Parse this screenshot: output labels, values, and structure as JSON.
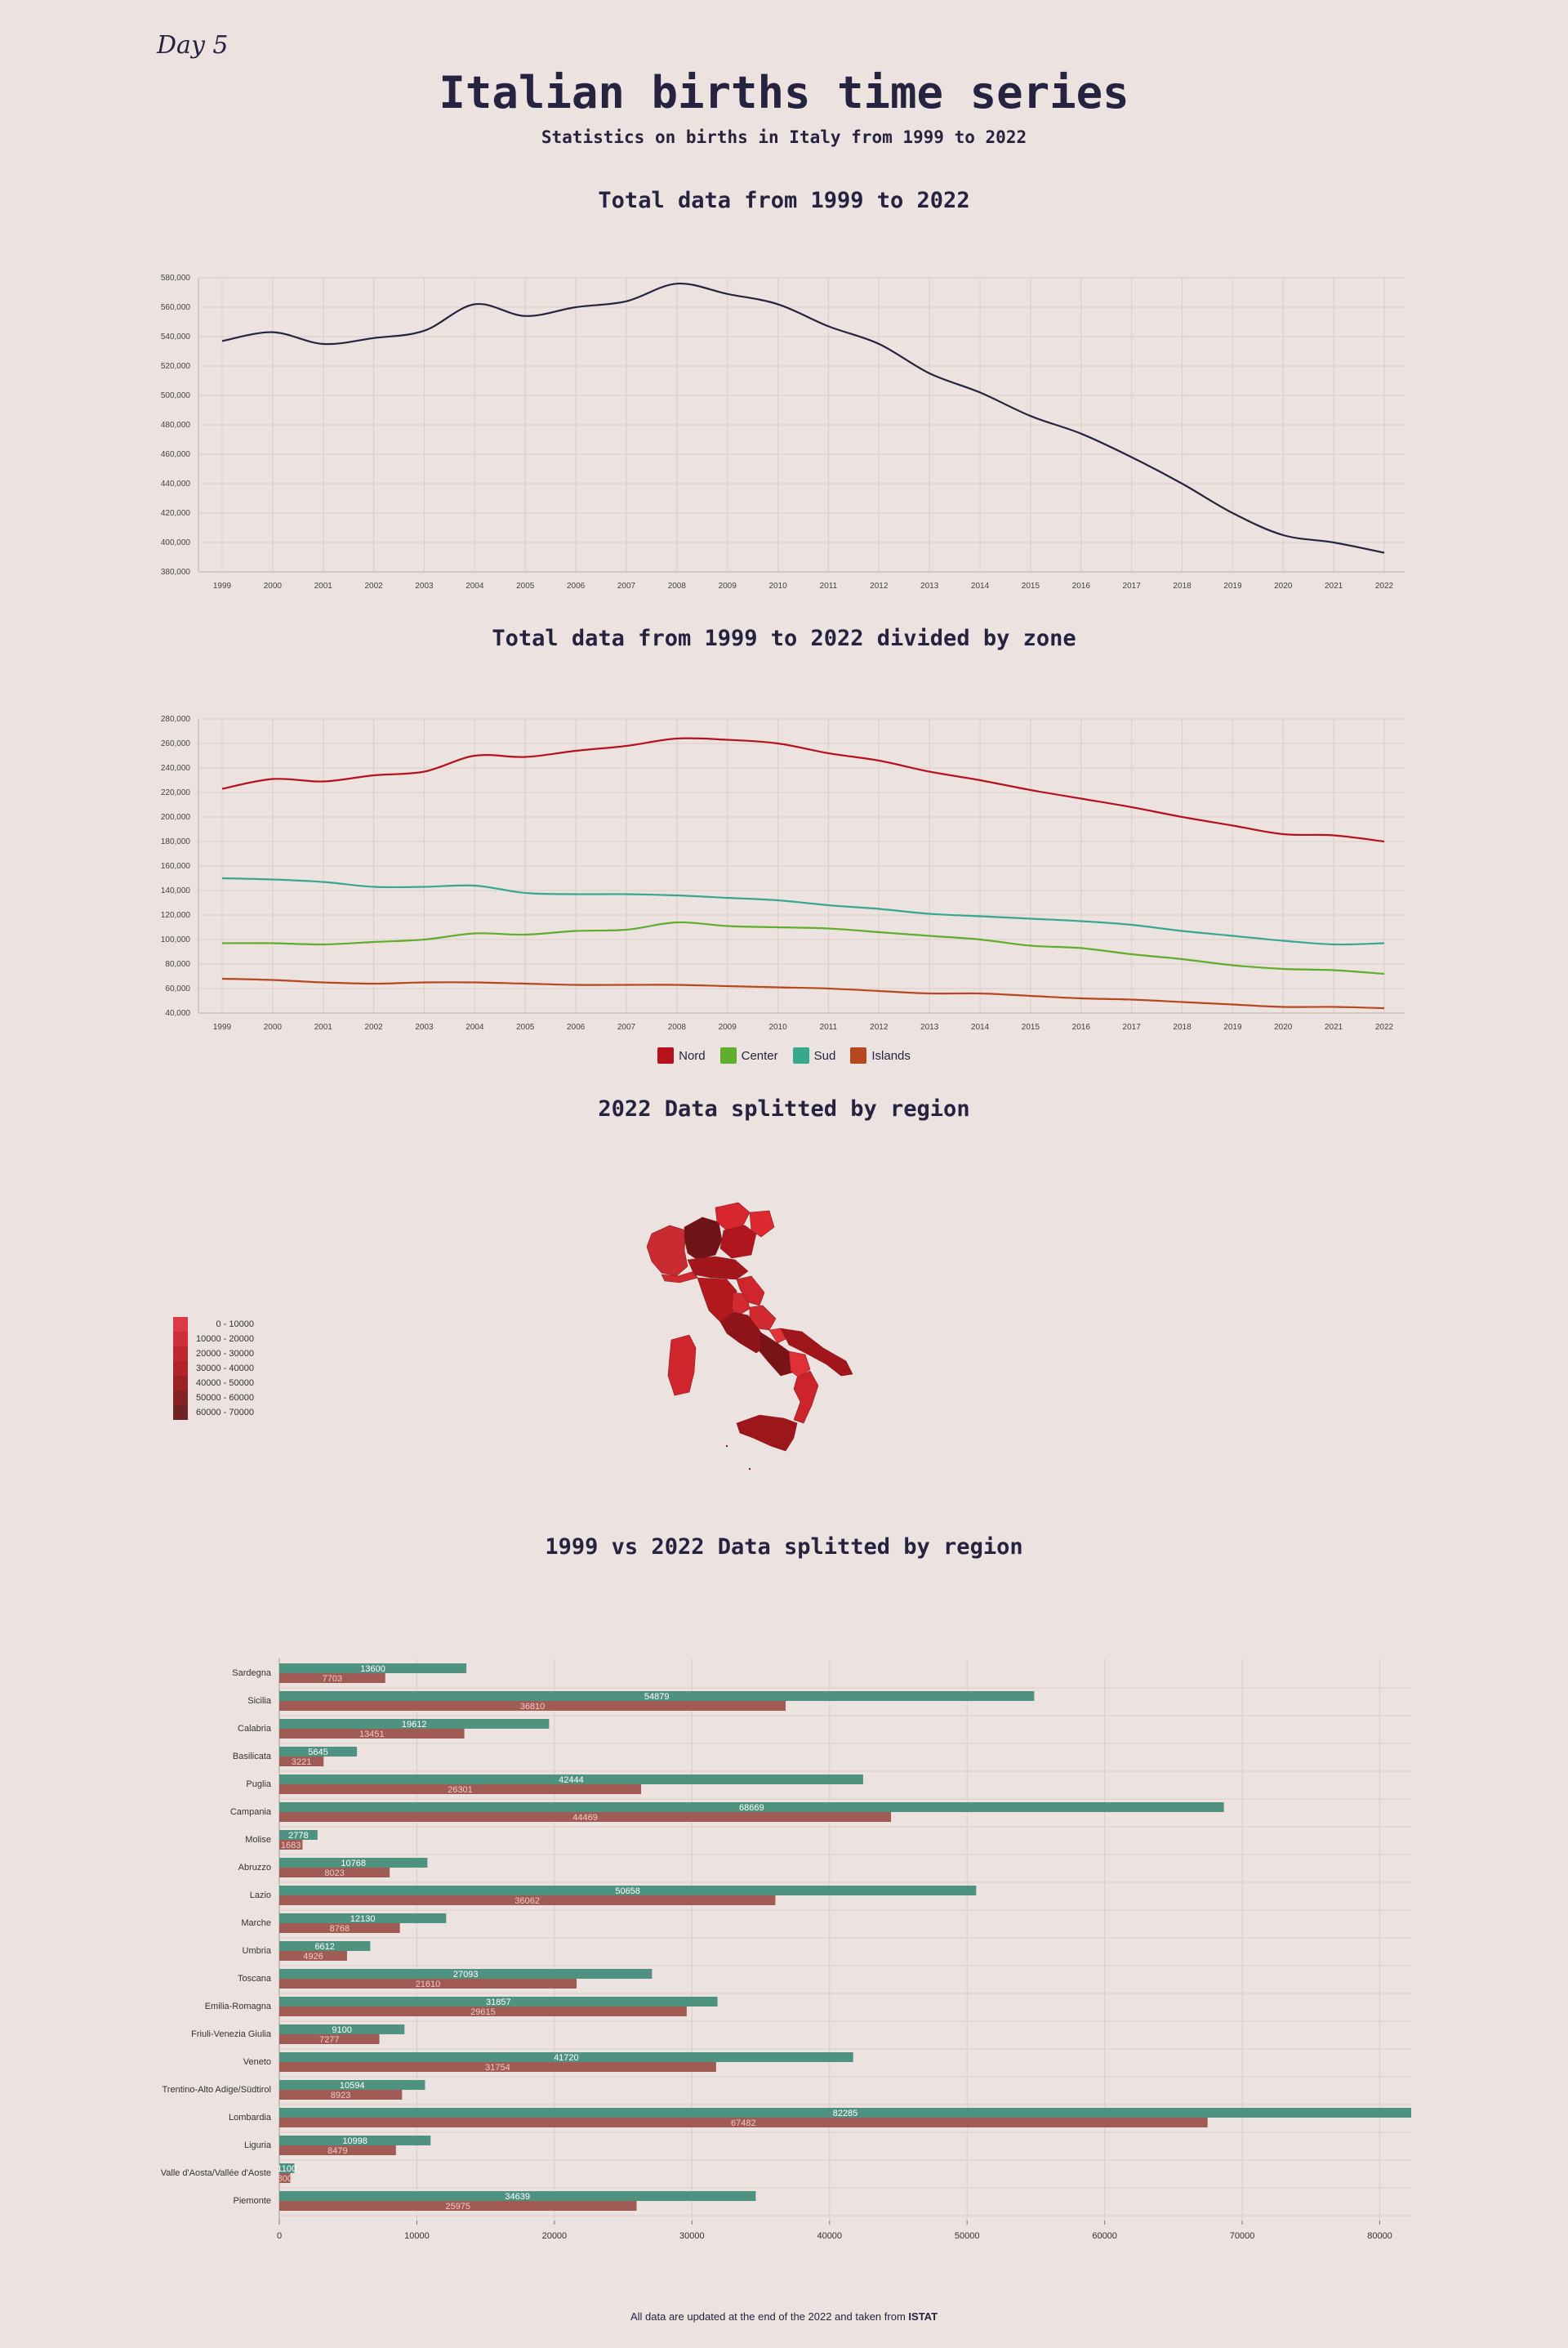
{
  "header": {
    "day": "Day 5",
    "title": "Italian births time series",
    "subtitle": "Statistics on births in Italy from 1999 to 2022"
  },
  "colors": {
    "background": "#ece2df",
    "total_line": "#262341",
    "nord": "#b5121b",
    "center": "#5fad2b",
    "sud": "#35a88e",
    "islands": "#b7471e",
    "bar_2022": "#4f9280",
    "bar_1999": "#a05b55"
  },
  "section_titles": {
    "total": "Total data from 1999 to 2022",
    "zone": "Total data from 1999 to 2022 divided by zone",
    "map": "2022 Data splitted by region",
    "bars": "1999 vs 2022 Data splitted by region"
  },
  "chart_data": [
    {
      "type": "line",
      "title": "Total data from 1999 to 2022",
      "x": [
        "1999",
        "2000",
        "2001",
        "2002",
        "2003",
        "2004",
        "2005",
        "2006",
        "2007",
        "2008",
        "2009",
        "2010",
        "2011",
        "2012",
        "2013",
        "2014",
        "2015",
        "2016",
        "2017",
        "2018",
        "2019",
        "2020",
        "2021",
        "2022"
      ],
      "series": [
        {
          "values": [
            537000,
            543000,
            535000,
            539000,
            544000,
            562000,
            554000,
            560000,
            564000,
            576000,
            569000,
            562000,
            547000,
            535000,
            515000,
            502000,
            486000,
            474000,
            458000,
            440000,
            420000,
            405000,
            400000,
            393000
          ]
        }
      ],
      "ylim": [
        380000,
        580000
      ],
      "yticks": [
        "380,000",
        "400,000",
        "420,000",
        "440,000",
        "460,000",
        "480,000",
        "500,000",
        "520,000",
        "540,000",
        "560,000",
        "580,000"
      ],
      "grid": true
    },
    {
      "type": "line",
      "title": "Total data from 1999 to 2022 divided by zone",
      "x": [
        "1999",
        "2000",
        "2001",
        "2002",
        "2003",
        "2004",
        "2005",
        "2006",
        "2007",
        "2008",
        "2009",
        "2010",
        "2011",
        "2012",
        "2013",
        "2014",
        "2015",
        "2016",
        "2017",
        "2018",
        "2019",
        "2020",
        "2021",
        "2022"
      ],
      "series": [
        {
          "name": "Nord",
          "values": [
            223000,
            231000,
            229000,
            234000,
            237000,
            250000,
            249000,
            254000,
            258000,
            264000,
            263000,
            260000,
            252000,
            246000,
            237000,
            230000,
            222000,
            215000,
            208000,
            200000,
            193000,
            186000,
            185000,
            180000
          ]
        },
        {
          "name": "Center",
          "values": [
            97000,
            97000,
            96000,
            98000,
            100000,
            105000,
            104000,
            107000,
            108000,
            114000,
            111000,
            110000,
            109000,
            106000,
            103000,
            100000,
            95000,
            93000,
            88000,
            84000,
            79000,
            76000,
            75000,
            72000
          ]
        },
        {
          "name": "Sud",
          "values": [
            150000,
            149000,
            147000,
            143000,
            143000,
            144000,
            138000,
            137000,
            137000,
            136000,
            134000,
            132000,
            128000,
            125000,
            121000,
            119000,
            117000,
            115000,
            112000,
            107000,
            103000,
            99000,
            96000,
            97000
          ]
        },
        {
          "name": "Islands",
          "values": [
            68000,
            67000,
            65000,
            64000,
            65000,
            65000,
            64000,
            63000,
            63000,
            63000,
            62000,
            61000,
            60000,
            58000,
            56000,
            56000,
            54000,
            52000,
            51000,
            49000,
            47000,
            45000,
            45000,
            44000
          ]
        }
      ],
      "ylim": [
        40000,
        280000
      ],
      "yticks": [
        "40,000",
        "60,000",
        "80,000",
        "100,000",
        "120,000",
        "140,000",
        "160,000",
        "180,000",
        "200,000",
        "220,000",
        "240,000",
        "260,000",
        "280,000"
      ],
      "legend": "bottom-center",
      "grid": true
    },
    {
      "type": "bar",
      "title": "1999 vs 2022 Data splitted by region",
      "orientation": "horizontal",
      "categories": [
        "Sardegna",
        "Sicilia",
        "Calabria",
        "Basilicata",
        "Puglia",
        "Campania",
        "Molise",
        "Abruzzo",
        "Lazio",
        "Marche",
        "Umbria",
        "Toscana",
        "Emilia-Romagna",
        "Friuli-Venezia Giulia",
        "Veneto",
        "Trentino-Alto Adige/Südtirol",
        "Lombardia",
        "Liguria",
        "Valle d'Aosta/Vallée d'Aoste",
        "Piemonte"
      ],
      "series": [
        {
          "values": [
            13600,
            54879,
            19612,
            5645,
            42444,
            68669,
            2778,
            10768,
            50658,
            12130,
            6612,
            27093,
            31857,
            9100,
            41720,
            10594,
            82285,
            10998,
            1100,
            34639
          ]
        },
        {
          "values": [
            7703,
            36810,
            13451,
            3221,
            26301,
            44469,
            1683,
            8023,
            36062,
            8768,
            4926,
            21610,
            29615,
            7277,
            31754,
            8923,
            67482,
            8479,
            800,
            25975
          ]
        }
      ],
      "xlim": [
        0,
        82285
      ],
      "xticks": [
        "0",
        "10000",
        "20000",
        "30000",
        "40000",
        "50000",
        "60000",
        "70000",
        "80000"
      ],
      "grid": true
    }
  ],
  "map": {
    "legend": [
      {
        "label": "0 - 10000",
        "color": "#dc3a45"
      },
      {
        "label": "10000 - 20000",
        "color": "#cf2f39"
      },
      {
        "label": "20000 - 30000",
        "color": "#c0282f"
      },
      {
        "label": "30000 - 40000",
        "color": "#b02427"
      },
      {
        "label": "40000 - 50000",
        "color": "#9a2224"
      },
      {
        "label": "50000 - 60000",
        "color": "#852224"
      },
      {
        "label": "60000 - 70000",
        "color": "#6e2325"
      }
    ]
  },
  "footer": {
    "text": "All data are updated at the end of the 2022 and taken from",
    "source": "ISTAT"
  }
}
